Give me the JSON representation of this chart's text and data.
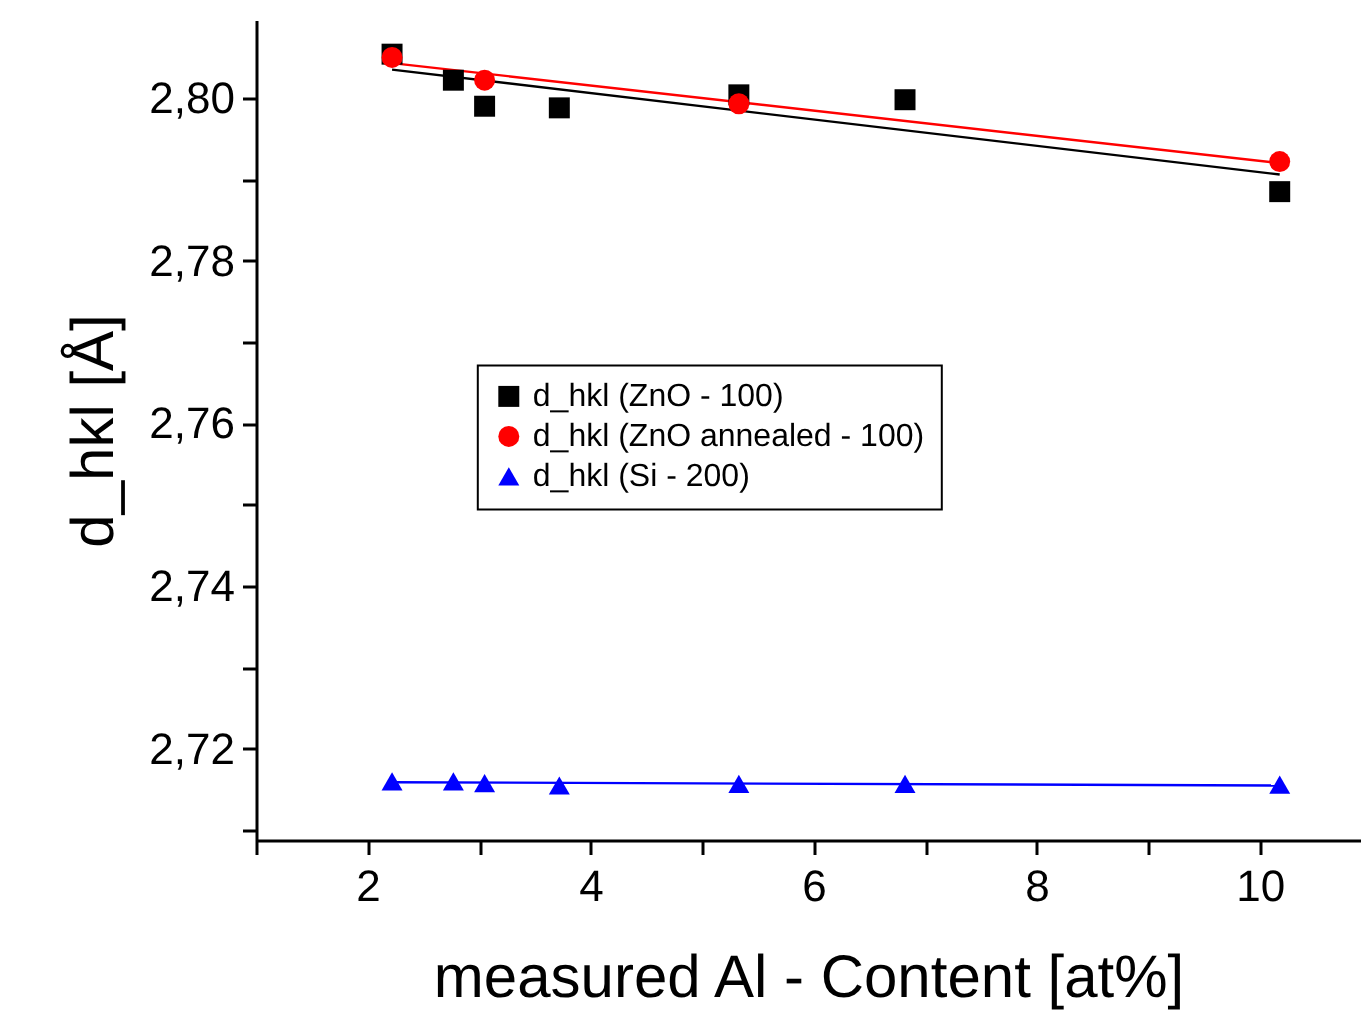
{
  "chart_data": {
    "type": "scatter",
    "xlabel": "measured Al - Content [at%]",
    "ylabel": "d_hkl [Å]",
    "x": [
      2.22,
      2.77,
      3.05,
      3.72,
      5.33,
      6.82,
      10.18
    ],
    "series": [
      {
        "name": "d_hkl (ZnO - 100)",
        "color": "#000000",
        "marker": "square",
        "values": [
          2.8054,
          2.8022,
          2.799,
          2.7988,
          2.8004,
          2.7998,
          2.7885
        ]
      },
      {
        "name": "d_hkl (ZnO annealed - 100)",
        "color": "#ff0000",
        "marker": "circle",
        "x": [
          2.22,
          3.05,
          5.33,
          10.18
        ],
        "values": [
          2.805,
          2.8022,
          2.7993,
          2.7922
        ]
      },
      {
        "name": "d_hkl (Si - 200)",
        "color": "#0000ff",
        "marker": "triangle",
        "values": [
          2.716,
          2.716,
          2.7158,
          2.7155,
          2.7157,
          2.7157,
          2.7156
        ]
      },
      {
        "type": "line",
        "color": "#000000",
        "x": [
          2.22,
          10.18
        ],
        "values": [
          2.8035,
          2.7906
        ]
      },
      {
        "type": "line",
        "color": "#ff0000",
        "x": [
          2.22,
          10.18
        ],
        "values": [
          2.8043,
          2.792
        ]
      },
      {
        "type": "line",
        "color": "#0000ff",
        "x": [
          2.22,
          10.18
        ],
        "values": [
          2.7159,
          2.7155
        ]
      }
    ],
    "xlim": [
      1,
      10.9
    ],
    "ylim": [
      2.7088,
      2.8096
    ],
    "xticks": [
      {
        "value": 1,
        "label": null
      },
      2,
      {
        "value": 3,
        "label": null
      },
      4,
      {
        "value": 5,
        "label": null
      },
      6,
      {
        "value": 7,
        "label": null
      },
      8,
      {
        "value": 9,
        "label": null
      },
      10
    ],
    "yticks": [
      {
        "value": 2.71,
        "label": null
      },
      {
        "value": 2.72,
        "label": "2,72"
      },
      {
        "value": 2.73,
        "label": null
      },
      {
        "value": 2.74,
        "label": "2,74"
      },
      {
        "value": 2.75,
        "label": null
      },
      {
        "value": 2.76,
        "label": "2,76"
      },
      {
        "value": 2.77,
        "label": null
      },
      {
        "value": 2.78,
        "label": "2,78"
      },
      {
        "value": 2.79,
        "label": null
      },
      {
        "value": 2.8,
        "label": "2,80"
      }
    ],
    "legend": "center",
    "grid": false
  }
}
